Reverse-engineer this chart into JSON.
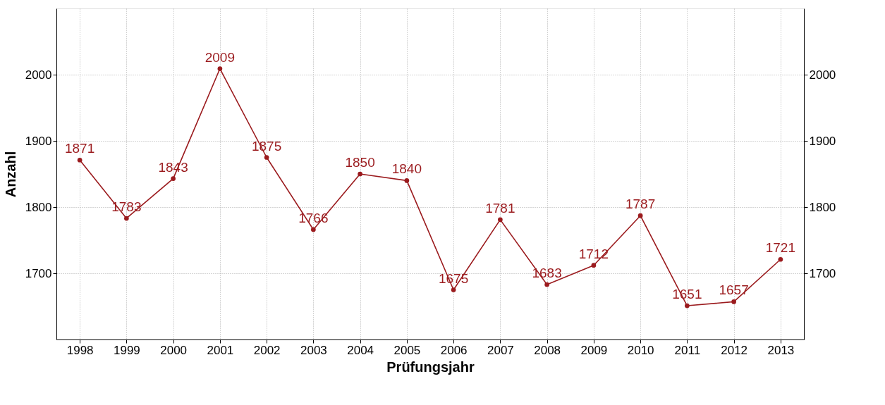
{
  "chart_data": {
    "type": "line",
    "xlabel": "Prüfungsjahr",
    "ylabel": "Anzahl",
    "categories": [
      "1998",
      "1999",
      "2000",
      "2001",
      "2002",
      "2003",
      "2004",
      "2005",
      "2006",
      "2007",
      "2008",
      "2009",
      "2010",
      "2011",
      "2012",
      "2013"
    ],
    "series": [
      {
        "color": "#9b1b1e",
        "values": [
          1871,
          1783,
          1843,
          2009,
          1875,
          1766,
          1850,
          1840,
          1675,
          1781,
          1683,
          1712,
          1787,
          1651,
          1657,
          1721
        ]
      }
    ],
    "ylim": [
      1600,
      2100
    ],
    "yticks": [
      1700,
      1800,
      1900,
      2000
    ],
    "y2lim": [
      1600,
      2100
    ],
    "y2ticks": [
      1700,
      1800,
      1900,
      2000
    ],
    "grid": true,
    "marker": "circle",
    "line_style": "solid",
    "data_labels": true
  }
}
